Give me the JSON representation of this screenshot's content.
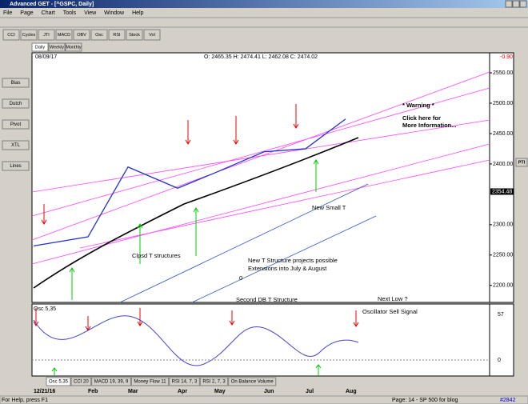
{
  "window": {
    "title": "Advanced GET - [^GSPC, Daily]"
  },
  "menu": [
    "File",
    "Page",
    "Chart",
    "Tools",
    "View",
    "Window",
    "Help"
  ],
  "toolbar": [
    "CCI",
    "Cycles",
    "JTI",
    "MACD",
    "OBV",
    "Osc",
    "RSI",
    "Stock",
    "Vol"
  ],
  "period_tabs": [
    "Daily",
    "Weekly",
    "Monthly"
  ],
  "side_tools": [
    "Bias",
    "Dutch",
    "Pivot",
    "XTL",
    "Lines"
  ],
  "right_tools": [
    "PTI"
  ],
  "chart_header": {
    "date": "08/09/17",
    "ohlc": "O: 2465.35  H: 2474.41  L: 2462.08  C: 2474.02",
    "change": "-0.90"
  },
  "annotations": [
    "* Warning *",
    "Click here for",
    "More Information...",
    "New Small T",
    "Clpsd T structures",
    "New T Structure projects possible",
    "Extensions into July & August",
    "0",
    "Second DB T Structure",
    "Next Low ?",
    "Oscillator Sell Signal"
  ],
  "oscillator": {
    "name": "Osc 5,35",
    "axis_labels": [
      "57",
      "0"
    ]
  },
  "indicator_tabs": [
    "Osc 5,35",
    "CCI 20",
    "MACD 19, 39, 9",
    "Money Flow 11",
    "RSI 14, 7, 3",
    "RSI 2, 7, 3",
    "On Balance Volume"
  ],
  "status": {
    "help": "For Help, press F1",
    "page": "Page: 14 - SP 500 for blog",
    "count": "#2842"
  },
  "chart_data": {
    "type": "line",
    "categories": [
      "12/21/16",
      "Feb",
      "Mar",
      "Apr",
      "May",
      "Jun",
      "Jul",
      "Aug"
    ],
    "values": [
      2265,
      2280,
      2395,
      2360,
      2385,
      2420,
      2425,
      2474
    ],
    "color": "#000000",
    "ylim": [
      2172,
      2583
    ],
    "yticks": [
      {
        "value": 2550,
        "label": "2550.00"
      },
      {
        "value": 2500,
        "label": "2500.00"
      },
      {
        "value": 2450,
        "label": "2450.00"
      },
      {
        "value": 2400,
        "label": "2400.00"
      },
      {
        "value": 2300,
        "label": "2300.00"
      },
      {
        "value": 2250,
        "label": "2250.00"
      },
      {
        "value": 2200,
        "label": "2200.00"
      }
    ],
    "price_marker": 2354.48
  }
}
